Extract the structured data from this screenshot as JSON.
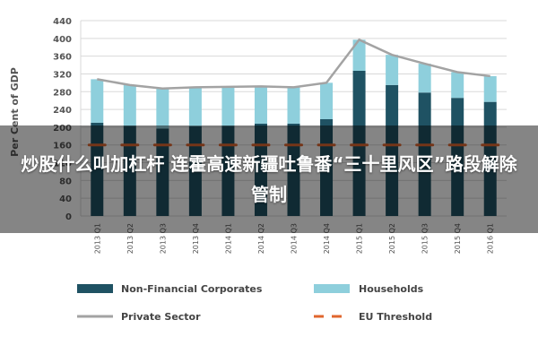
{
  "overlay": {
    "headline": "炒股什么叫加杠杆 连霍高速新疆吐鲁番“三十里风区”路段解除管制"
  },
  "colors": {
    "non_financial": "#1f5263",
    "households": "#8ecfdc",
    "private_sector": "#a3a3a3",
    "eu_threshold": "#e0662e",
    "grid": "#d9d9d9"
  },
  "chart_data": {
    "type": "bar",
    "stacked": true,
    "categories": [
      "2013 Q1",
      "2013 Q2",
      "2013 Q3",
      "2013 Q4",
      "2014 Q1",
      "2014 Q2",
      "2014 Q3",
      "2014 Q4",
      "2015 Q1",
      "2015 Q2",
      "2015 Q3",
      "2015 Q4",
      "2016 Q1"
    ],
    "series": [
      {
        "name": "Non-Financial Corporates",
        "kind": "bar",
        "values": [
          210,
          203,
          197,
          202,
          203,
          208,
          208,
          218,
          327,
          295,
          278,
          266,
          257
        ]
      },
      {
        "name": "Households",
        "kind": "bar",
        "values": [
          98,
          92,
          90,
          88,
          88,
          84,
          82,
          82,
          70,
          68,
          65,
          58,
          58
        ]
      },
      {
        "name": "Private Sector",
        "kind": "line",
        "values": [
          308,
          295,
          287,
          290,
          291,
          292,
          290,
          300,
          397,
          363,
          343,
          324,
          315
        ]
      },
      {
        "name": "EU Threshold",
        "kind": "dashed-line",
        "values": [
          160,
          160,
          160,
          160,
          160,
          160,
          160,
          160,
          160,
          160,
          160,
          160,
          160
        ]
      }
    ],
    "ylabel": "Per Cent of GDP",
    "ylim": [
      0,
      440
    ],
    "yticks": [
      0,
      40,
      80,
      120,
      160,
      200,
      240,
      280,
      320,
      360,
      400,
      440
    ],
    "grid": true,
    "legend_position": "bottom"
  }
}
